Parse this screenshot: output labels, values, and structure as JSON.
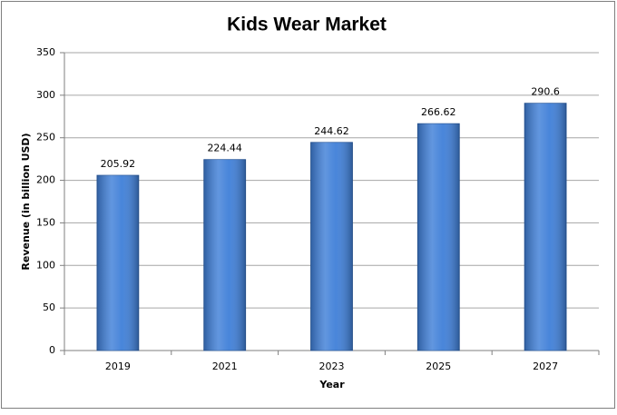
{
  "chart_data": {
    "type": "bar",
    "title": "Kids Wear Market",
    "x_label": "Year",
    "y_label": "Revenue (in billion USD)",
    "categories": [
      "2019",
      "2021",
      "2023",
      "2025",
      "2027"
    ],
    "values": [
      205.92,
      224.44,
      244.62,
      266.62,
      290.6
    ],
    "color": "#3f7fd8",
    "ylim": [
      0,
      350
    ],
    "yticks": [
      0,
      50,
      100,
      150,
      200,
      250,
      300,
      350
    ],
    "grid": true
  }
}
